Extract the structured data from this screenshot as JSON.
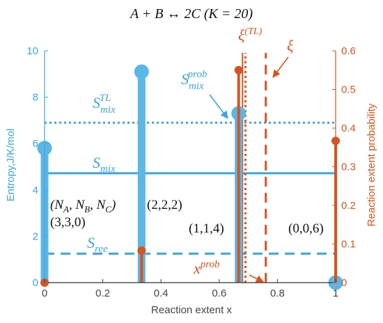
{
  "colors": {
    "blue": "#5bb7e6",
    "orange": "#d9531e",
    "axis_black": "#333333",
    "line_blue": "#3aa6e0"
  },
  "title": {
    "prefix": "A + B ↔ 2C (",
    "k_part": "K = 20)"
  },
  "axes": {
    "xlabel": "Reaction extent x",
    "ylabel_left": "Entropy,J/K/mol",
    "ylabel_right": "Reaction extent probability",
    "x_ticks": [
      "0",
      "0.2",
      "0.4",
      "0.6",
      "0.8",
      "1"
    ],
    "y_left_ticks": [
      "0",
      "2",
      "4",
      "6",
      "8",
      "10"
    ],
    "y_right_ticks": [
      "0",
      "0.1",
      "0.2",
      "0.3",
      "0.4",
      "0.5",
      "0.6"
    ]
  },
  "annotations": {
    "s_mix_tl": {
      "base": "S",
      "sub": "mix",
      "sup": "TL"
    },
    "s_mix": {
      "base": "S",
      "sub": "mix"
    },
    "s_ree": {
      "base": "S",
      "sub": "ree"
    },
    "s_mix_prob": {
      "base": "S",
      "sub": "mix",
      "sup": "prob"
    },
    "x_prob": {
      "base": "x",
      "sup": "prob"
    },
    "xi_tl": {
      "base": "ξ",
      "sup": "(TL)"
    },
    "xi": "ξ",
    "composition_header": "(N_A, N_B, N_C)",
    "composition_labels": [
      "(3,3,0)",
      "(2,2,2)",
      "(1,1,4)",
      "(0,0,6)"
    ]
  },
  "chart_data": {
    "type": "bar",
    "xlabel": "Reaction extent x",
    "ylabel": "Entropy,J/K/mol",
    "ylabel_right": "Reaction extent probability",
    "xlim": [
      0,
      1
    ],
    "ylim": [
      0,
      10
    ],
    "ylim_right": [
      0,
      0.6
    ],
    "x": [
      0,
      0.3333,
      0.6667,
      1
    ],
    "series": [
      {
        "name": "",
        "axis": "left",
        "style": "thick stem",
        "color": "#5bb7e6",
        "values": [
          5.8,
          9.1,
          7.3,
          0
        ]
      },
      {
        "name": "",
        "axis": "right",
        "style": "thin stem",
        "color": "#d9531e",
        "values": [
          0,
          0.083,
          0.55,
          0.367
        ]
      }
    ],
    "reference_lines": [
      {
        "label": "S_mix^TL",
        "axis": "left",
        "orientation": "horizontal",
        "value": 6.9,
        "style": "dotted",
        "color": "#3aa6e0"
      },
      {
        "label": "S_mix",
        "axis": "left",
        "orientation": "horizontal",
        "value": 4.72,
        "style": "solid",
        "color": "#3aa6e0"
      },
      {
        "label": "S_ree",
        "axis": "left",
        "orientation": "horizontal",
        "value": 1.25,
        "style": "dashed",
        "color": "#3aa6e0"
      },
      {
        "label": "ξ^(TL)",
        "axis": "x",
        "orientation": "vertical",
        "value": 0.69,
        "style": "dotted",
        "color": "#d9531e"
      },
      {
        "label": "ξ",
        "axis": "x",
        "orientation": "vertical",
        "value": 0.76,
        "style": "dashed",
        "color": "#d9531e"
      },
      {
        "label": "x^prob",
        "axis": "x",
        "orientation": "vertical",
        "value": 0.68,
        "style": "solid thin",
        "color": "#d9531e"
      }
    ]
  }
}
